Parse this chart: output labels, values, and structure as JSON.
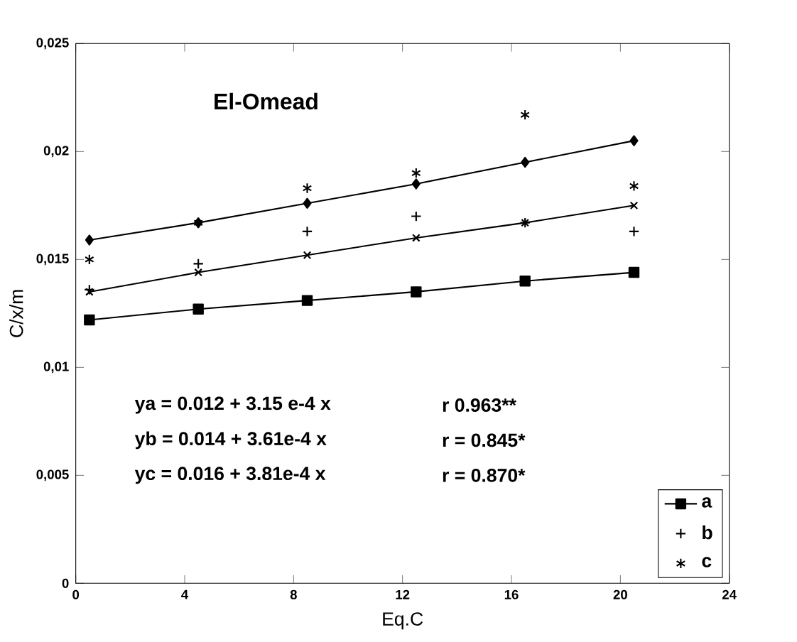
{
  "chart_data": {
    "type": "line",
    "title": "El-Omead",
    "xlabel": "Eq.C",
    "ylabel": "C/x/m",
    "x": [
      0.5,
      4.5,
      8.5,
      12.5,
      16.5,
      20.5
    ],
    "series": [
      {
        "name": "a",
        "color": "#000000",
        "marker": "square",
        "type": "line",
        "values": [
          0.0122,
          0.0127,
          0.0131,
          0.0135,
          0.014,
          0.0144
        ]
      },
      {
        "name": "b",
        "color": "#000000",
        "marker": "cross",
        "type": "scatter",
        "values": [
          0.0136,
          0.0148,
          0.0163,
          0.017,
          0.0167,
          0.0163
        ]
      },
      {
        "name": "c",
        "color": "#000000",
        "marker": "cross",
        "type": "scatter",
        "values": [
          0.015,
          0.0167,
          0.0183,
          0.019,
          0.0217,
          0.0184
        ]
      },
      {
        "color": "#000000",
        "marker": "cross",
        "type": "line",
        "values": [
          0.0135,
          0.0144,
          0.0152,
          0.016,
          0.0167,
          0.0175
        ]
      },
      {
        "color": "#000000",
        "marker": "diamond",
        "type": "line",
        "values": [
          0.0159,
          0.0167,
          0.0176,
          0.0185,
          0.0195,
          0.0205
        ]
      }
    ],
    "xlim": [
      0,
      24
    ],
    "xticks": [
      0,
      4,
      8,
      12,
      16,
      20,
      24
    ],
    "ylim": [
      0,
      0.025
    ],
    "yticks": [
      0,
      {
        "value": 0.005,
        "label": "0,005"
      },
      {
        "value": 0.01,
        "label": "0,01"
      },
      {
        "value": 0.015,
        "label": "0,015"
      },
      {
        "value": 0.02,
        "label": "0,02"
      },
      {
        "value": 0.025,
        "label": "0,025"
      }
    ],
    "legend": "bottom right",
    "annotations": [
      "ya = 0.012 + 3.15 e-4 x",
      "r 0.963**",
      "yb = 0.014 + 3.61e-4 x",
      "r = 0.845*",
      "yc = 0.016 + 3.81e-4 x",
      "r = 0.870*"
    ]
  }
}
